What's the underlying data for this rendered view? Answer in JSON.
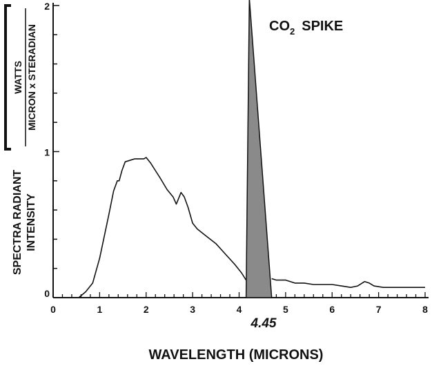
{
  "chart_data": {
    "type": "line",
    "title": "",
    "xlabel": "WAVELENGTH (MICRONS)",
    "ylabel_lines": [
      "SPECTRA RADIANT",
      "INTENSITY"
    ],
    "units": {
      "numerator": "WATTS",
      "denominator": "MICRON x STERADIAN"
    },
    "xlim": [
      0,
      8
    ],
    "ylim": [
      0,
      2
    ],
    "x_ticks": [
      0,
      1,
      2,
      3,
      4,
      5,
      6,
      7,
      8
    ],
    "y_ticks": [
      0,
      1,
      2
    ],
    "y_minor_step": 0.2,
    "x_minor_step": 0.2,
    "grid": false,
    "colors": {
      "line": "#111111",
      "spike_fill": "#8a8a8a"
    },
    "series": [
      {
        "points": [
          [
            0.55,
            0.0
          ],
          [
            0.7,
            0.04
          ],
          [
            0.85,
            0.1
          ],
          [
            1.0,
            0.27
          ],
          [
            1.1,
            0.42
          ],
          [
            1.2,
            0.57
          ],
          [
            1.3,
            0.73
          ],
          [
            1.38,
            0.8
          ],
          [
            1.42,
            0.8
          ],
          [
            1.48,
            0.87
          ],
          [
            1.55,
            0.93
          ],
          [
            1.65,
            0.94
          ],
          [
            1.75,
            0.95
          ],
          [
            1.85,
            0.95
          ],
          [
            1.95,
            0.95
          ],
          [
            2.0,
            0.96
          ],
          [
            2.1,
            0.92
          ],
          [
            2.2,
            0.87
          ],
          [
            2.3,
            0.82
          ],
          [
            2.45,
            0.74
          ],
          [
            2.58,
            0.69
          ],
          [
            2.65,
            0.64
          ],
          [
            2.7,
            0.68
          ],
          [
            2.75,
            0.72
          ],
          [
            2.82,
            0.69
          ],
          [
            2.9,
            0.62
          ],
          [
            3.0,
            0.51
          ],
          [
            3.1,
            0.47
          ],
          [
            3.3,
            0.42
          ],
          [
            3.5,
            0.37
          ],
          [
            3.7,
            0.3
          ],
          [
            3.9,
            0.23
          ],
          [
            4.05,
            0.17
          ],
          [
            4.15,
            0.12
          ]
        ]
      },
      {
        "points": [
          [
            4.7,
            0.13
          ],
          [
            4.8,
            0.12
          ],
          [
            5.0,
            0.12
          ],
          [
            5.2,
            0.1
          ],
          [
            5.4,
            0.1
          ],
          [
            5.6,
            0.09
          ],
          [
            5.8,
            0.09
          ],
          [
            6.0,
            0.09
          ],
          [
            6.2,
            0.08
          ],
          [
            6.4,
            0.07
          ],
          [
            6.55,
            0.08
          ],
          [
            6.7,
            0.11
          ],
          [
            6.8,
            0.1
          ],
          [
            6.9,
            0.08
          ],
          [
            7.1,
            0.07
          ],
          [
            7.5,
            0.07
          ],
          [
            8.0,
            0.07
          ]
        ]
      }
    ],
    "spike_polygon": [
      [
        4.15,
        0.0
      ],
      [
        4.22,
        2.05
      ],
      [
        4.7,
        0.0
      ]
    ],
    "annotations": {
      "spike_label": "CO",
      "spike_sub": "2",
      "spike_word": "SPIKE",
      "marker_value": "4.45"
    }
  }
}
